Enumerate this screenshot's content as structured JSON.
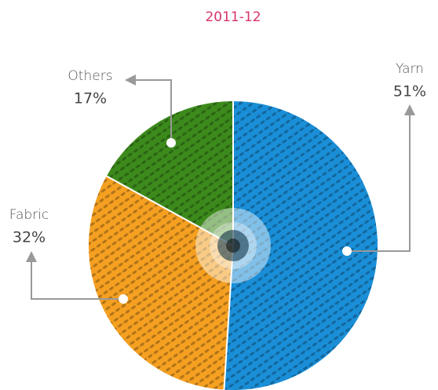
{
  "chart_data": {
    "type": "pie",
    "title": "2011-12",
    "categories": [
      "Yarn",
      "Fabric",
      "Others"
    ],
    "values": [
      51,
      32,
      17
    ],
    "value_labels": [
      "51%",
      "32%",
      "17%"
    ],
    "colors": [
      "#1a8fd8",
      "#f5a021",
      "#3c8a1c"
    ]
  }
}
